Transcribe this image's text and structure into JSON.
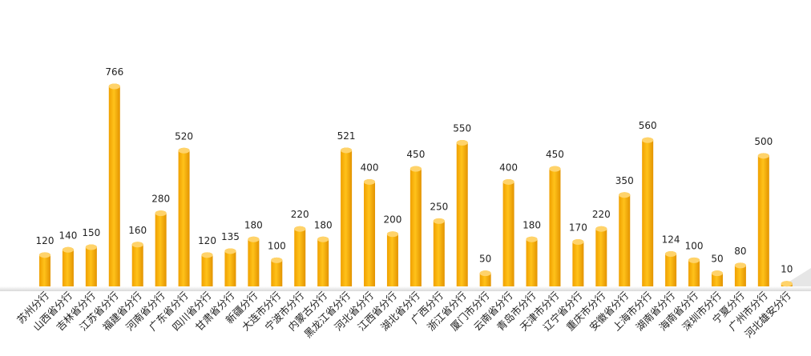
{
  "chart_data": {
    "type": "bar",
    "color": "#f5a800",
    "categories": [
      "苏州分行",
      "山西省分行",
      "吉林省分行",
      "江苏省分行",
      "福建省分行",
      "河南省分行",
      "广东省分行",
      "四川省分行",
      "甘肃省分行",
      "新疆分行",
      "大连市分行",
      "宁波市分行",
      "内蒙古分行",
      "黑龙江省分行",
      "河北省分行",
      "江西省分行",
      "湖北省分行",
      "广西分行",
      "浙江省分行",
      "厦门市分行",
      "云南省分行",
      "青岛市分行",
      "天津市分行",
      "辽宁省分行",
      "重庆市分行",
      "安徽省分行",
      "上海市分行",
      "湖南省分行",
      "海南省分行",
      "深圳市分行",
      "宁夏分行",
      "广州市分行",
      "河北雄安分行"
    ],
    "values": [
      120,
      140,
      150,
      766,
      160,
      280,
      520,
      120,
      135,
      180,
      100,
      220,
      180,
      521,
      400,
      200,
      450,
      250,
      550,
      50,
      400,
      180,
      450,
      170,
      220,
      350,
      560,
      124,
      100,
      50,
      80,
      500,
      10
    ]
  }
}
